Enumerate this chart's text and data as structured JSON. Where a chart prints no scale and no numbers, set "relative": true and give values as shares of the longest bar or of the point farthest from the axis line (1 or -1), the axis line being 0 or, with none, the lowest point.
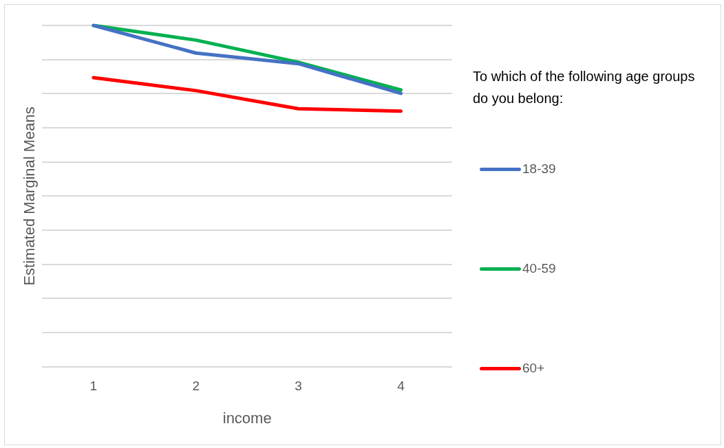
{
  "chart_data": {
    "type": "line",
    "relative": true,
    "xlabel": "income",
    "ylabel": "Estimated Marginal Means",
    "legend_title": "To which of the following age groups do you belong:",
    "legend": "right",
    "grid": "y",
    "marker": "none",
    "categories": [
      "1",
      "2",
      "3",
      "4"
    ],
    "series": [
      {
        "name": "18-39",
        "color": "#4472c4",
        "values": [
          1.0,
          0.919,
          0.888,
          0.801
        ]
      },
      {
        "name": "40-59",
        "color": "#00b050",
        "values": [
          1.0,
          0.957,
          0.892,
          0.811
        ]
      },
      {
        "name": "60+",
        "color": "#ff0000",
        "values": [
          0.847,
          0.809,
          0.756,
          0.749
        ]
      }
    ]
  }
}
